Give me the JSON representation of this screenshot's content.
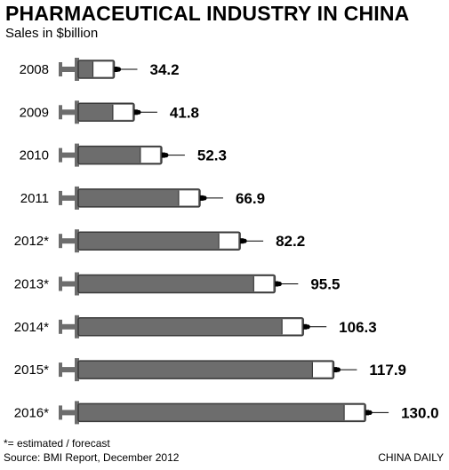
{
  "chart_data": {
    "type": "bar",
    "title": "PHARMACEUTICAL INDUSTRY IN CHINA",
    "subtitle": "Sales in $billion",
    "categories": [
      "2008",
      "2009",
      "2010",
      "2011",
      "2012*",
      "2013*",
      "2014*",
      "2015*",
      "2016*"
    ],
    "values": [
      34.2,
      41.8,
      52.3,
      66.9,
      82.2,
      95.5,
      106.3,
      117.9,
      130.0
    ],
    "value_labels": [
      "34.2",
      "41.8",
      "52.3",
      "66.9",
      "82.2",
      "95.5",
      "106.3",
      "117.9",
      "130.0"
    ],
    "orientation": "horizontal",
    "bar_style": "syringe",
    "colors": {
      "bar": "#6d6d6d",
      "plunger": "#ffffff",
      "outline": "#3a3a3a",
      "needle": "#000000"
    },
    "grid": false,
    "legend": "none",
    "note": "*= estimated / forecast",
    "source": "Source: BMI Report, December 2012",
    "credit": "CHINA DAILY"
  }
}
